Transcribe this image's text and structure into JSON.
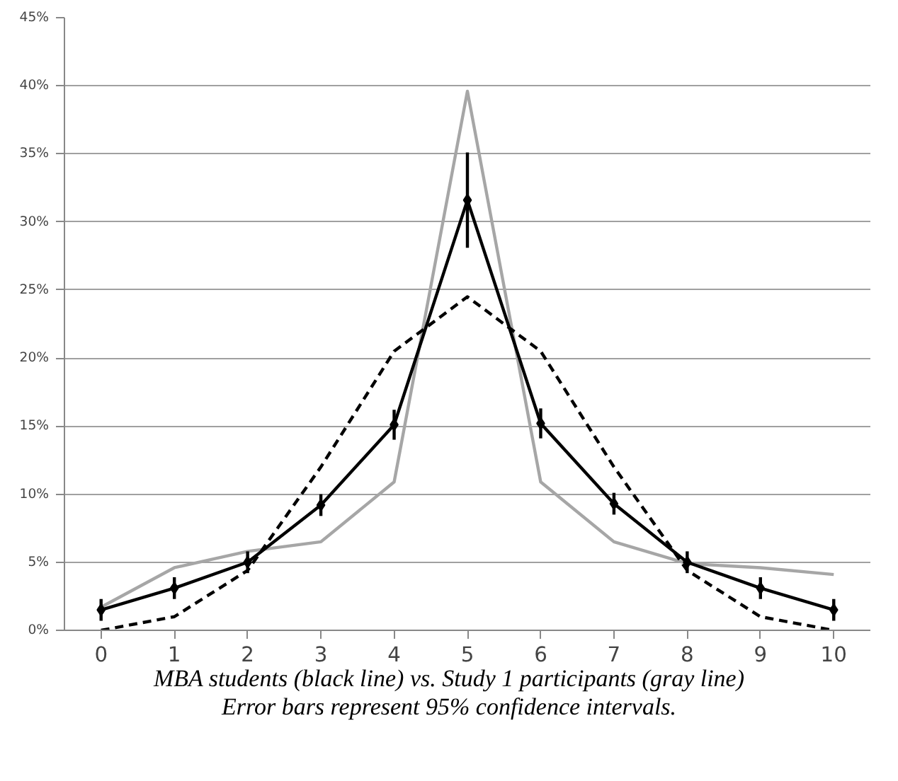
{
  "chart_data": {
    "type": "line",
    "categories": [
      "0",
      "1",
      "2",
      "3",
      "4",
      "5",
      "6",
      "7",
      "8",
      "9",
      "10"
    ],
    "series": [
      {
        "color": "#a6a6a6",
        "values": [
          1.7,
          4.6,
          5.8,
          6.5,
          10.9,
          39.6,
          10.9,
          6.5,
          4.9,
          4.6,
          4.1
        ],
        "marker": "none",
        "line_style": "solid"
      },
      {
        "color": "#000000",
        "values": [
          0.0,
          1.0,
          4.4,
          12.0,
          20.5,
          24.5,
          20.5,
          12.0,
          4.4,
          1.0,
          0.0
        ],
        "marker": "none",
        "line_style": "dashed"
      },
      {
        "color": "#000000",
        "values": [
          1.5,
          3.1,
          5.0,
          9.2,
          15.1,
          31.6,
          15.2,
          9.3,
          5.0,
          3.1,
          1.5
        ],
        "errors": [
          0.8,
          0.8,
          0.8,
          0.8,
          1.1,
          3.5,
          1.1,
          0.8,
          0.8,
          0.8,
          0.8
        ],
        "marker": "diamond",
        "line_style": "solid"
      }
    ],
    "ylim": [
      0,
      45
    ],
    "yticks": [
      {
        "value": 0,
        "label": "0%"
      },
      {
        "value": 5,
        "label": "5%"
      },
      {
        "value": 10,
        "label": "10%"
      },
      {
        "value": 15,
        "label": "15%"
      },
      {
        "value": 20,
        "label": "20%"
      },
      {
        "value": 25,
        "label": "25%"
      },
      {
        "value": 30,
        "label": "30%"
      },
      {
        "value": 35,
        "label": "35%"
      },
      {
        "value": 40,
        "label": "40%"
      },
      {
        "value": 45,
        "label": "45%"
      }
    ],
    "grid": "y",
    "annotations": [
      "MBA students (black line) vs. Study 1 participants (gray line)",
      "Error bars represent 95% confidence intervals."
    ]
  }
}
